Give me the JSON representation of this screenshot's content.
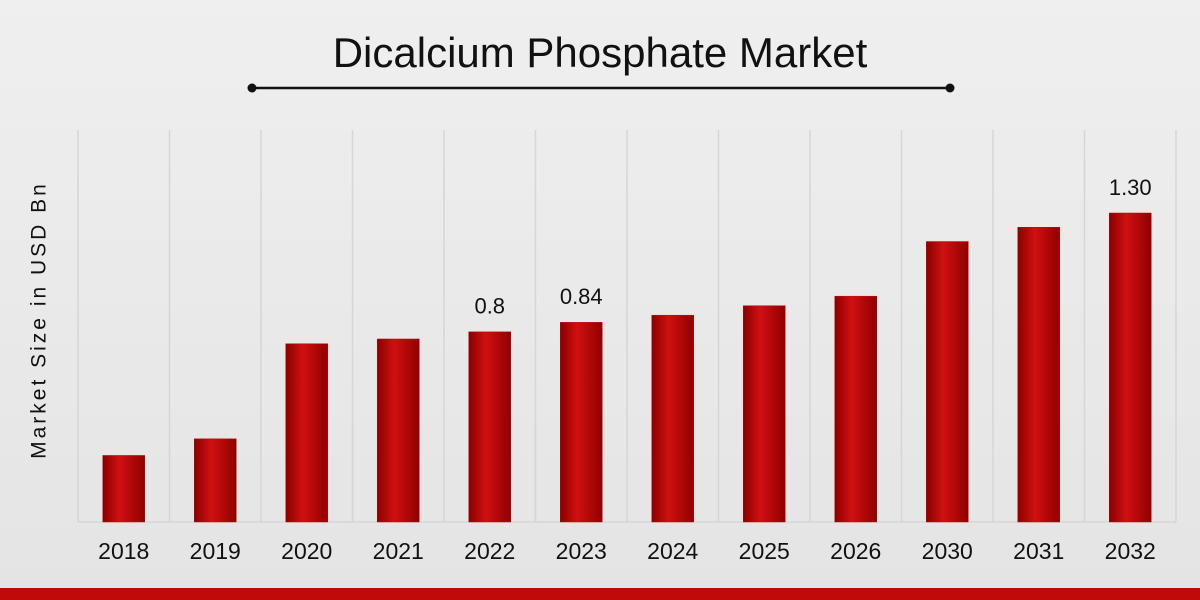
{
  "chart_data": {
    "type": "bar",
    "title": "Dicalcium Phosphate Market",
    "y_label": "Market Size in USD Bn",
    "categories": [
      "2018",
      "2019",
      "2020",
      "2021",
      "2022",
      "2023",
      "2024",
      "2025",
      "2026",
      "2030",
      "2031",
      "2032"
    ],
    "values": [
      0.28,
      0.35,
      0.75,
      0.77,
      0.8,
      0.84,
      0.87,
      0.91,
      0.95,
      1.18,
      1.24,
      1.3
    ],
    "value_labels": [
      null,
      null,
      null,
      null,
      "0.8",
      "0.84",
      null,
      null,
      null,
      null,
      null,
      "1.30"
    ],
    "color": "#c00a0a"
  }
}
